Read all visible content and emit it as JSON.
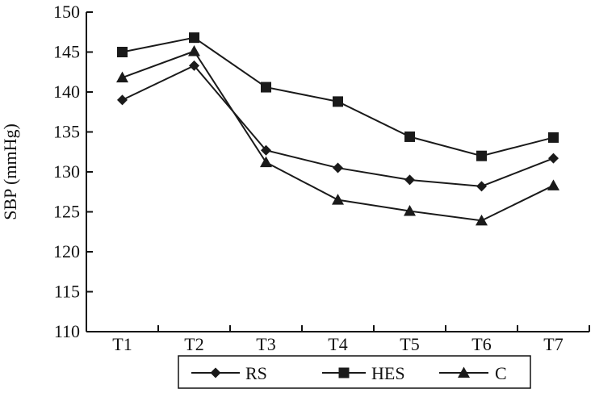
{
  "chart_data": {
    "type": "line",
    "categories": [
      "T1",
      "T2",
      "T3",
      "T4",
      "T5",
      "T6",
      "T7"
    ],
    "ylabel": "SBP (mmHg)",
    "ylim": [
      110,
      150
    ],
    "yticks": [
      110,
      115,
      120,
      125,
      130,
      135,
      140,
      145,
      150
    ],
    "legend_position": "bottom",
    "grid": false,
    "series": [
      {
        "name": "RS",
        "marker": "diamond",
        "color": "#1a1a1a",
        "values": [
          139.0,
          143.3,
          132.7,
          130.5,
          129.0,
          128.2,
          131.7
        ]
      },
      {
        "name": "HES",
        "marker": "square",
        "color": "#1a1a1a",
        "values": [
          145.0,
          146.8,
          140.6,
          138.8,
          134.4,
          132.0,
          134.3
        ]
      },
      {
        "name": "C",
        "marker": "triangle",
        "color": "#1a1a1a",
        "values": [
          141.8,
          145.1,
          131.2,
          126.5,
          125.1,
          123.9,
          128.3
        ]
      }
    ]
  }
}
